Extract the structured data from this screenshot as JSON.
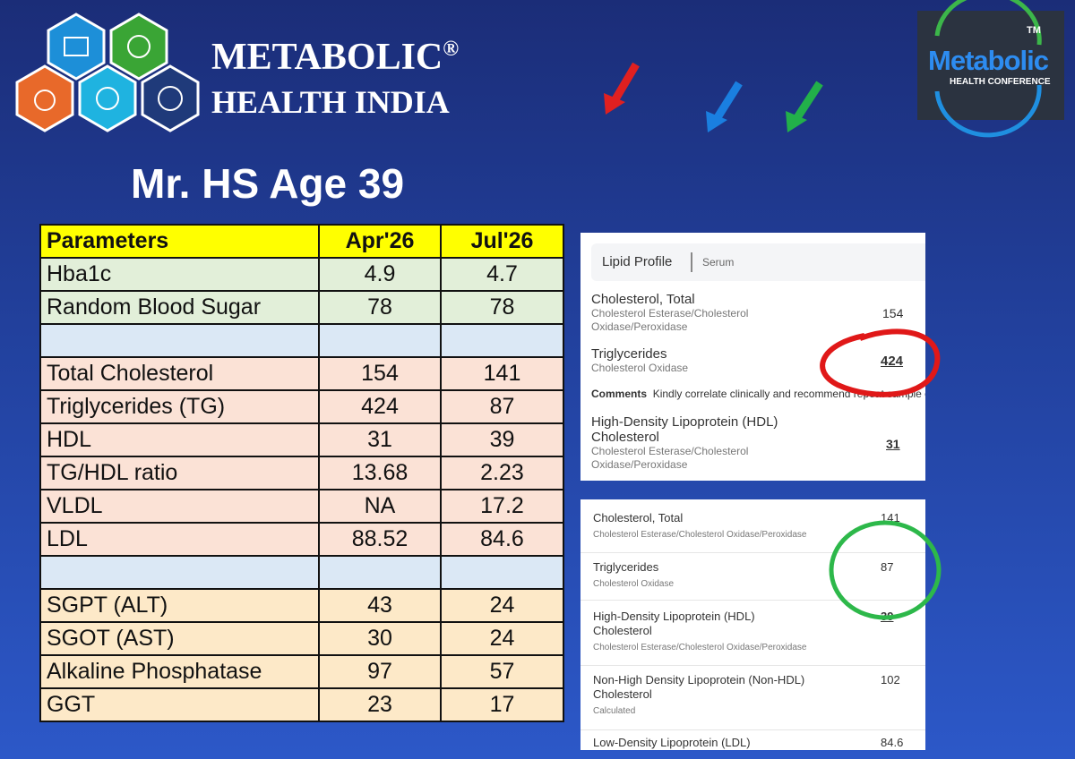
{
  "brand": {
    "name": "METABOLIC",
    "mark": "®",
    "subtitle": "HEALTH INDIA"
  },
  "conference_logo": {
    "name": "Metabolic",
    "subtitle": "HEALTH CONFERENCE",
    "mark": "TM"
  },
  "title": "Mr. HS Age 39",
  "table": {
    "header": [
      "Parameters",
      "Apr'26",
      "Jul'26"
    ],
    "groups": [
      {
        "rows": [
          [
            "Hba1c",
            "4.9",
            "4.7"
          ],
          [
            "Random Blood Sugar",
            "78",
            "78"
          ]
        ]
      },
      {
        "rows": [
          [
            "Total Cholesterol",
            "154",
            "141"
          ],
          [
            "Triglycerides (TG)",
            "424",
            "87"
          ],
          [
            "HDL",
            "31",
            "39"
          ],
          [
            "TG/HDL ratio",
            "13.68",
            "2.23"
          ],
          [
            "VLDL",
            "NA",
            "17.2"
          ],
          [
            "LDL",
            "88.52",
            "84.6"
          ]
        ]
      },
      {
        "rows": [
          [
            "SGPT (ALT)",
            "43",
            "24"
          ],
          [
            "SGOT (AST)",
            "30",
            "24"
          ],
          [
            "Alkaline Phosphatase",
            "97",
            "57"
          ],
          [
            "GGT",
            "23",
            "17"
          ]
        ]
      }
    ]
  },
  "report_1": {
    "title": "Lipid Profile",
    "specimen": "Serum",
    "items": [
      {
        "name": "Cholesterol, Total",
        "method": "Cholesterol Esterase/Cholesterol Oxidase/Peroxidase",
        "value": "154"
      },
      {
        "name": "Triglycerides",
        "method": "Cholesterol Oxidase",
        "value": "424"
      },
      {
        "name": "High-Density Lipoprotein (HDL) Cholesterol",
        "method": "Cholesterol Esterase/Cholesterol Oxidase/Peroxidase",
        "value": "31"
      }
    ],
    "comments_label": "Comments",
    "comments": "Kindly correlate clinically and recommend repeat sample c"
  },
  "report_2": {
    "items": [
      {
        "name": "Cholesterol, Total",
        "method": "Cholesterol Esterase/Cholesterol Oxidase/Peroxidase",
        "value": "141"
      },
      {
        "name": "Triglycerides",
        "method": "Cholesterol Oxidase",
        "value": "87"
      },
      {
        "name": "High-Density Lipoprotein (HDL) Cholesterol",
        "method": "Cholesterol Esterase/Cholesterol Oxidase/Peroxidase",
        "value": "39"
      },
      {
        "name": "Non-High Density Lipoprotein (Non-HDL) Cholesterol",
        "method": "Calculated",
        "value": "102"
      },
      {
        "name": "Low-Density Lipoprotein (LDL)",
        "value": "84.6"
      }
    ]
  }
}
